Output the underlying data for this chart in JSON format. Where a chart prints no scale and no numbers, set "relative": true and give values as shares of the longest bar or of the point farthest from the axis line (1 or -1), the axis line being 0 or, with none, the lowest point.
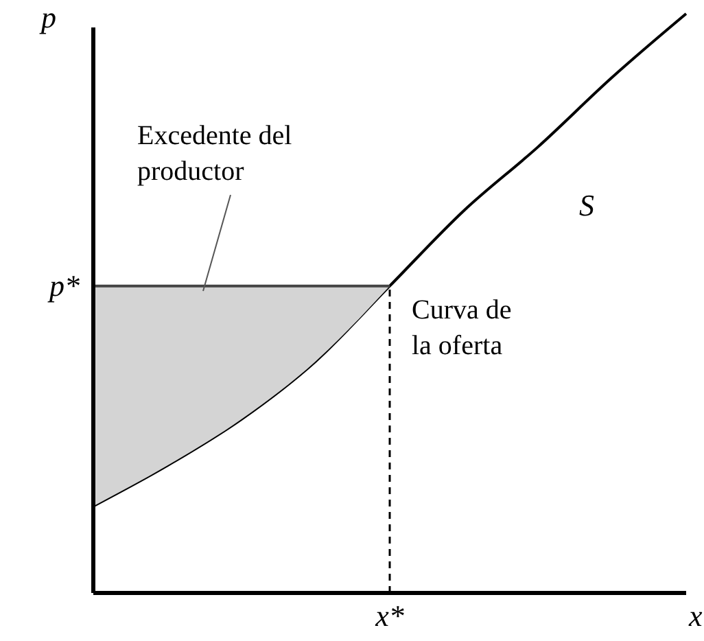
{
  "chart_data": {
    "type": "line",
    "relative": true,
    "xlabel": "x",
    "ylabel": "p",
    "categories": [
      null,
      null,
      null,
      null,
      null,
      null,
      null,
      null,
      null
    ],
    "series": [
      {
        "name": "S",
        "color": "#000000",
        "values": [
          0.15,
          0.22,
          0.3,
          0.4,
          0.53,
          0.66,
          0.77,
          0.89,
          1
        ]
      },
      {
        "color": "#444444",
        "values": [
          0.53,
          0.53,
          0.53,
          0.53,
          0.53,
          null,
          null,
          null,
          null
        ],
        "lower": [
          0.15,
          0.22,
          0.3,
          0.4,
          0.53,
          null,
          null,
          null,
          null
        ],
        "upper": [
          0.53,
          0.53,
          0.53,
          0.53,
          0.53,
          null,
          null,
          null,
          null
        ]
      }
    ],
    "annotations": [
      "Excedente del productor",
      "Curva de la oferta",
      "p*",
      "x*"
    ],
    "marker": "none"
  }
}
